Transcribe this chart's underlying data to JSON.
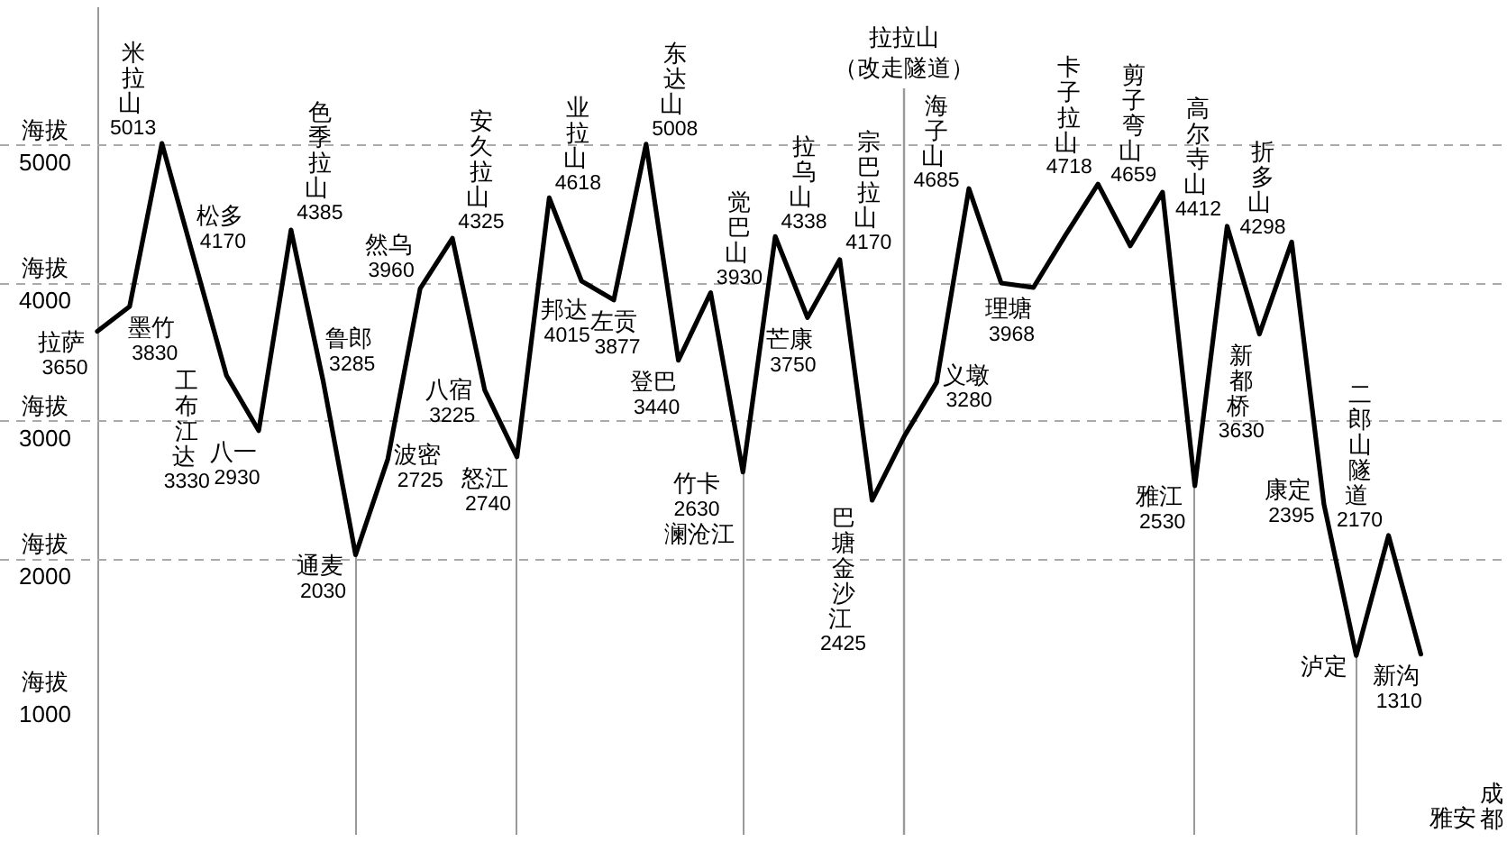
{
  "chart_data": {
    "type": "line",
    "categories": [
      null,
      null,
      null,
      null,
      null,
      null,
      null,
      null,
      null,
      null,
      null,
      null,
      null,
      null,
      null,
      null,
      null,
      null,
      null,
      null,
      null,
      null,
      null,
      null,
      null,
      "拉拉山（改走隧道）",
      null,
      null,
      null,
      null,
      null,
      null,
      null,
      null,
      null,
      null,
      null,
      null,
      null,
      null,
      null,
      null,
      null,
      null
    ],
    "values": [
      3650,
      3830,
      5013,
      4170,
      3330,
      2930,
      4385,
      3285,
      2030,
      2725,
      3960,
      4325,
      3225,
      2740,
      4618,
      4015,
      3877,
      5008,
      3440,
      3930,
      2630,
      4338,
      3750,
      4170,
      2425,
      2890,
      3280,
      4685,
      4000,
      3968,
      4350,
      4718,
      4270,
      4659,
      2530,
      4412,
      3630,
      4298,
      2395,
      1300,
      2170,
      1310,
      null,
      null
    ],
    "value_labels": [
      "拉萨 3650",
      "墨竹 3830",
      "米拉山 5013",
      "松多 4170",
      "工布江达 3330",
      "八一 2930",
      "色季拉山 4385",
      "鲁郎 3285",
      "通麦 2030",
      "波密 2725",
      "然乌 3960",
      "安久拉山 4325",
      "八宿 3225",
      "怒江 2740",
      "业拉山 4618",
      "邦达 4015",
      "左贡 3877",
      "东达山 5008",
      "登巴 3440",
      "觉巴山 3930",
      "竹卡 2630 澜沧江",
      "拉乌山 4338",
      "芒康 3750",
      "宗巴拉山 4170",
      "巴塘金沙江 2425",
      null,
      "义墩 3280",
      "海子山 4685",
      null,
      "理塘 3968",
      null,
      "卡子拉山 4718",
      null,
      "剪子弯山 4659",
      "雅江 2530",
      "高尔寺山 4412",
      "新都桥 3630",
      "折多山 4298",
      "康定 2395",
      "泸定",
      "二郎山隧道 2170",
      "新沟 1310",
      "雅安",
      "成都"
    ],
    "color": "#000000",
    "ylabel": "海拔",
    "ylim": [
      0,
      6000
    ],
    "yticks": [
      1000,
      2000,
      3000,
      4000,
      5000
    ],
    "ref_lines": [
      {
        "axis": "y",
        "value": 2000,
        "color": "#aaaaaa",
        "line_style": "dashed"
      },
      {
        "axis": "y",
        "value": 3000,
        "color": "#aaaaaa",
        "line_style": "dashed"
      },
      {
        "axis": "y",
        "value": 4000,
        "color": "#aaaaaa",
        "line_style": "dashed"
      },
      {
        "axis": "y",
        "value": 5000,
        "color": "#aaaaaa",
        "line_style": "dashed"
      },
      {
        "axis": "x",
        "value": "拉拉山（改走隧道）",
        "color": "#999999"
      }
    ]
  }
}
